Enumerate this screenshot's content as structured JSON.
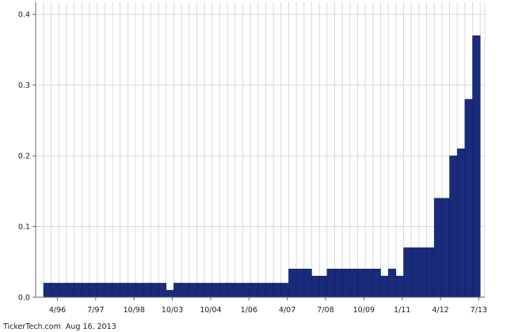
{
  "chart_data": {
    "type": "bar",
    "values": [
      0.02,
      0.02,
      0.02,
      0.02,
      0.02,
      0.02,
      0.02,
      0.02,
      0.02,
      0.02,
      0.02,
      0.02,
      0.02,
      0.02,
      0.02,
      0.02,
      0.01,
      0.02,
      0.02,
      0.02,
      0.02,
      0.02,
      0.02,
      0.02,
      0.02,
      0.02,
      0.02,
      0.02,
      0.02,
      0.02,
      0.02,
      0.02,
      0.04,
      0.04,
      0.04,
      0.03,
      0.03,
      0.04,
      0.04,
      0.04,
      0.04,
      0.04,
      0.04,
      0.04,
      0.03,
      0.04,
      0.03,
      0.07,
      0.07,
      0.07,
      0.07,
      0.14,
      0.14,
      0.2,
      0.21,
      0.28,
      0.37
    ],
    "x_ticks": [
      {
        "label": "4/96",
        "bar": 1
      },
      {
        "label": "7/97",
        "bar": 6
      },
      {
        "label": "10/98",
        "bar": 11
      },
      {
        "label": "10/03",
        "bar": 16
      },
      {
        "label": "10/04",
        "bar": 21
      },
      {
        "label": "1/06",
        "bar": 26
      },
      {
        "label": "4/07",
        "bar": 31
      },
      {
        "label": "7/08",
        "bar": 36
      },
      {
        "label": "10/09",
        "bar": 41
      },
      {
        "label": "1/11",
        "bar": 46
      },
      {
        "label": "4/12",
        "bar": 51
      },
      {
        "label": "7/13",
        "bar": 56
      }
    ],
    "yticks": [
      0,
      0.1,
      0.2,
      0.3,
      0.4
    ],
    "ytick_labels": [
      "0.0",
      "0.1",
      "0.2",
      "0.3",
      "0.4"
    ],
    "ylim": [
      0,
      0.417
    ],
    "grid": true,
    "colors": {
      "bar": "#1B2B7B",
      "bar_edge": "#0F1D5C",
      "grid": "#D9D9D9",
      "axis": "#666666"
    }
  },
  "footer": {
    "source": "TickerTech.com",
    "date": "Aug 16, 2013"
  }
}
